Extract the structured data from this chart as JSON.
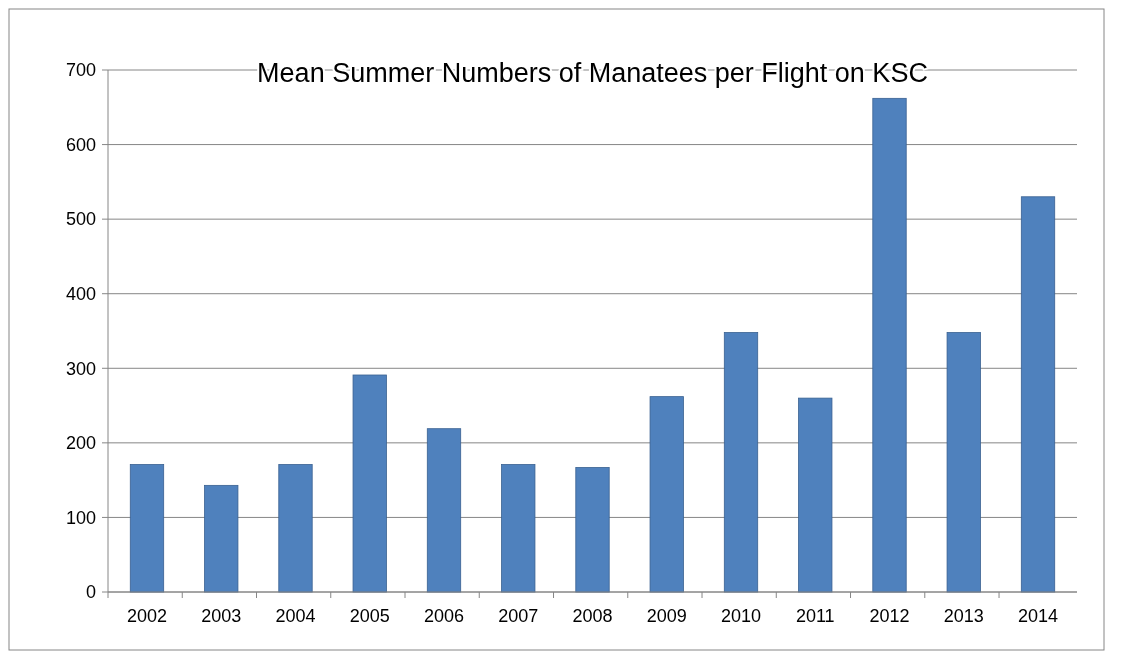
{
  "chart_data": {
    "type": "bar",
    "title": "Mean Summer Numbers of Manatees per Flight on KSC",
    "categories": [
      "2002",
      "2003",
      "2004",
      "2005",
      "2006",
      "2007",
      "2008",
      "2009",
      "2010",
      "2011",
      "2012",
      "2013",
      "2014"
    ],
    "values": [
      171,
      143,
      171,
      291,
      219,
      171,
      167,
      262,
      348,
      260,
      662,
      348,
      530
    ],
    "color": "#4f81bd",
    "ylim": [
      0,
      700
    ],
    "yticks": [
      0,
      100,
      200,
      300,
      400,
      500,
      600,
      700
    ],
    "grid": "y"
  }
}
